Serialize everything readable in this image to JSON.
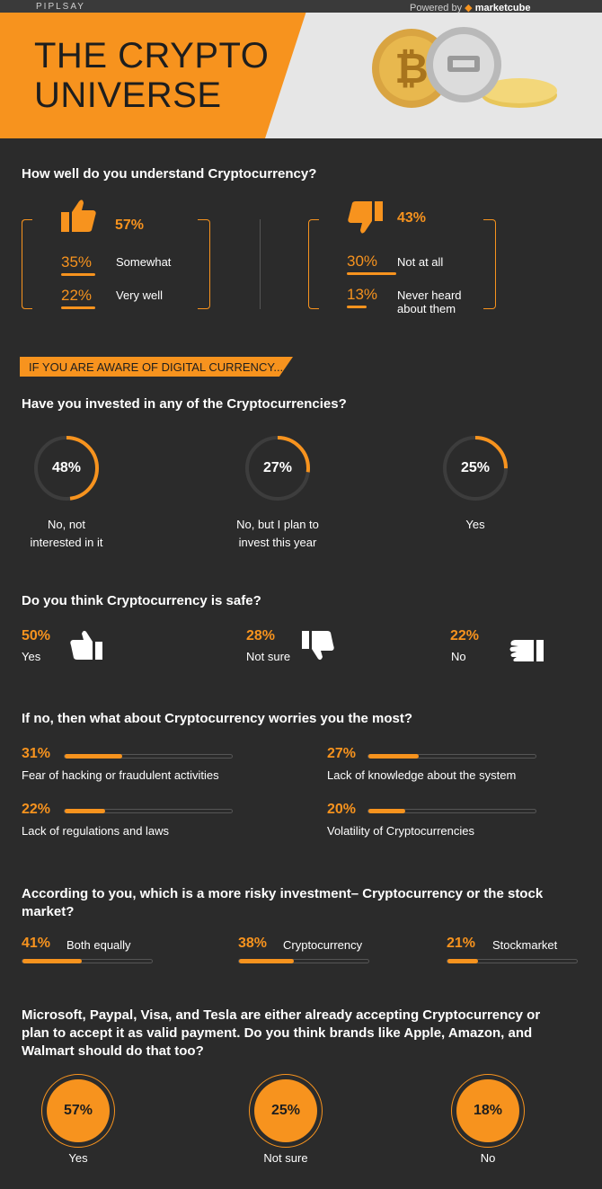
{
  "header": {
    "brand": "PIPLSAY",
    "powered_by": "Powered by",
    "powered_logo": "marketcube",
    "title_line1": "THE CRYPTO",
    "title_line2": "UNIVERSE"
  },
  "understand": {
    "question": "How well do you understand Cryptocurrency?",
    "positive": {
      "total": "57%",
      "items": [
        {
          "pct": "35%",
          "label": "Somewhat"
        },
        {
          "pct": "22%",
          "label": "Very well"
        }
      ]
    },
    "negative": {
      "total": "43%",
      "items": [
        {
          "pct": "30%",
          "label": "Not at all"
        },
        {
          "pct": "13%",
          "label_line1": "Never heard",
          "label_line2": "about them"
        }
      ]
    }
  },
  "banner": "IF YOU ARE AWARE OF DIGITAL CURRENCY...",
  "invested": {
    "question": "Have you invested in any of the Cryptocurrencies?",
    "items": [
      {
        "pct": "48%",
        "value": 48,
        "label_line1": "No, not",
        "label_line2": "interested in it"
      },
      {
        "pct": "27%",
        "value": 27,
        "label_line1": "No, but I plan to",
        "label_line2": "invest this year"
      },
      {
        "pct": "25%",
        "value": 25,
        "label_line1": "Yes",
        "label_line2": ""
      }
    ]
  },
  "safe": {
    "question": "Do you think Cryptocurrency is safe?",
    "items": [
      {
        "pct": "50%",
        "label": "Yes",
        "icon": "thumbs-up-icon"
      },
      {
        "pct": "28%",
        "label": "Not sure",
        "icon": "thumbs-down-icon"
      },
      {
        "pct": "22%",
        "label": "No",
        "icon": "thumb-sideways-icon"
      }
    ]
  },
  "worries": {
    "question": "If no, then what about Cryptocurrency worries you the most?",
    "items": [
      {
        "pct": "31%",
        "value": 31,
        "label": "Fear of hacking or fraudulent activities"
      },
      {
        "pct": "27%",
        "value": 27,
        "label": "Lack of knowledge about the system"
      },
      {
        "pct": "22%",
        "value": 22,
        "label": "Lack of regulations and laws"
      },
      {
        "pct": "20%",
        "value": 20,
        "label": "Volatility of Cryptocurrencies"
      }
    ]
  },
  "risky": {
    "question_line1": "According to you, which is a more risky investment– Cryptocurrency or the stock",
    "question_line2": "market?",
    "items": [
      {
        "pct": "41%",
        "value": 41,
        "label": "Both equally"
      },
      {
        "pct": "38%",
        "value": 38,
        "label": "Cryptocurrency"
      },
      {
        "pct": "21%",
        "value": 21,
        "label": "Stockmarket"
      }
    ]
  },
  "brands": {
    "question_line1": "Microsoft, Paypal, Visa, and Tesla are either already accepting Cryptocurrency or",
    "question_line2": "plan to accept it as valid payment. Do you think brands like Apple, Amazon, and",
    "question_line3": "Walmart should do that too?",
    "items": [
      {
        "pct": "57%",
        "label": "Yes"
      },
      {
        "pct": "25%",
        "label": "Not sure"
      },
      {
        "pct": "18%",
        "label": "No"
      }
    ]
  },
  "colors": {
    "accent": "#f7931e",
    "background": "#2b2b2b",
    "header_bg": "#e6e6e6"
  }
}
